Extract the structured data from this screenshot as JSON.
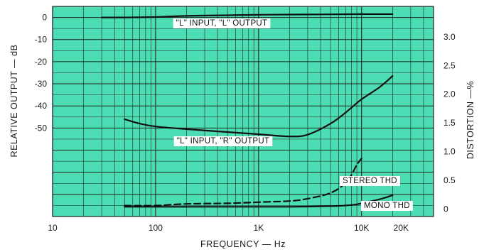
{
  "chart_data": {
    "type": "line",
    "x_axis": {
      "label": "FREQUENCY — Hz",
      "scale": "log",
      "range": [
        10,
        50000
      ],
      "ticks": [
        {
          "value": 10,
          "label": "10"
        },
        {
          "value": 100,
          "label": "100"
        },
        {
          "value": 1000,
          "label": "1K"
        },
        {
          "value": 10000,
          "label": "10K"
        },
        {
          "value": 20000,
          "label": "20K"
        }
      ]
    },
    "y_axis_left": {
      "label": "RELATIVE OUTPUT — dB",
      "range": [
        -90,
        5
      ],
      "ticks": [
        {
          "value": 0,
          "label": "0"
        },
        {
          "value": -10,
          "label": "-10"
        },
        {
          "value": -20,
          "label": "-20"
        },
        {
          "value": -30,
          "label": "-30"
        },
        {
          "value": -40,
          "label": "-40"
        },
        {
          "value": -50,
          "label": "-50"
        }
      ]
    },
    "y_axis_right": {
      "label": "DISTORTION —%",
      "range": [
        -0.13,
        3.53
      ],
      "ticks": [
        {
          "value": 0,
          "label": "0"
        },
        {
          "value": 0.5,
          "label": "0.5"
        },
        {
          "value": 1.0,
          "label": "1.0"
        },
        {
          "value": 1.5,
          "label": "1.5"
        },
        {
          "value": 2.0,
          "label": "2.0"
        },
        {
          "value": 2.5,
          "label": "2.5"
        },
        {
          "value": 3.0,
          "label": "3.0"
        }
      ]
    },
    "grid": true,
    "colors": {
      "background": "#4dddb4",
      "grid": "#222222",
      "line": "#111111"
    },
    "series": [
      {
        "name": "\"L\" INPUT, \"L\" OUTPUT",
        "axis": "left",
        "style": "solid",
        "x": [
          30,
          50,
          100,
          200,
          500,
          1000,
          2000,
          5000,
          10000,
          20000
        ],
        "y": [
          0,
          0,
          0.2,
          0.7,
          1.0,
          1.2,
          1.3,
          1.4,
          1.5,
          1.5
        ]
      },
      {
        "name": "\"L\" INPUT, \"R\" OUTPUT",
        "axis": "left",
        "style": "solid",
        "x": [
          50,
          70,
          100,
          200,
          500,
          1000,
          2000,
          3000,
          5000,
          7000,
          10000,
          15000,
          20000
        ],
        "y": [
          -46,
          -48,
          -49.3,
          -50.5,
          -51.8,
          -52.8,
          -53.8,
          -53,
          -48,
          -43,
          -37,
          -31.5,
          -26.5
        ]
      },
      {
        "name": "STEREO THD",
        "axis": "right",
        "style": "dashed",
        "x": [
          50,
          100,
          200,
          500,
          1000,
          2000,
          3000,
          5000,
          7000,
          8000,
          9000,
          10000
        ],
        "y": [
          0.06,
          0.06,
          0.09,
          0.1,
          0.12,
          0.14,
          0.18,
          0.28,
          0.45,
          0.6,
          0.77,
          0.88
        ]
      },
      {
        "name": "MONO THD",
        "axis": "right",
        "style": "solid",
        "x": [
          50,
          100,
          200,
          500,
          1000,
          2000,
          5000,
          8000,
          10000,
          15000,
          20000
        ],
        "y": [
          0.04,
          0.04,
          0.04,
          0.04,
          0.04,
          0.04,
          0.05,
          0.07,
          0.1,
          0.17,
          0.24
        ]
      }
    ]
  }
}
